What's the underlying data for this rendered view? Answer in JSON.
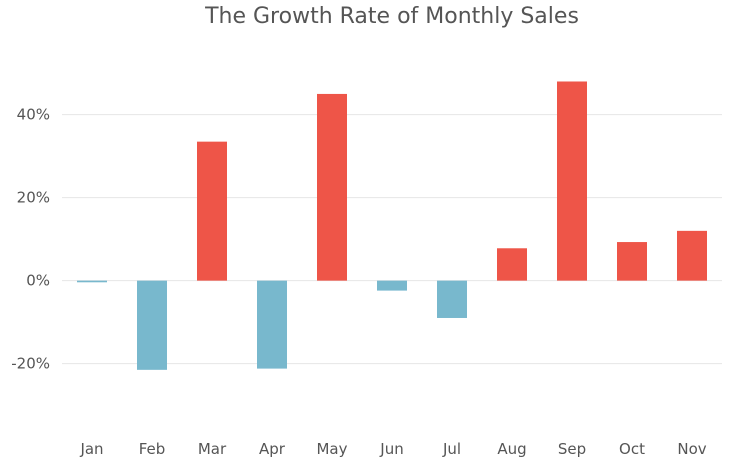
{
  "chart_data": {
    "type": "bar",
    "title": "The Growth Rate of Monthly Sales",
    "xlabel": "",
    "ylabel": "",
    "categories": [
      "Jan",
      "Feb",
      "Mar",
      "Apr",
      "May",
      "Jun",
      "Jul",
      "Aug",
      "Sep",
      "Oct",
      "Nov"
    ],
    "values": [
      -0.4,
      -21.5,
      33.5,
      -21.2,
      45.0,
      -2.4,
      -9.0,
      7.8,
      48.0,
      9.3,
      12.0
    ],
    "ylim": [
      -36,
      58
    ],
    "yticks": [
      -20,
      0,
      20,
      40
    ],
    "ytick_labels": [
      "-20%",
      "0%",
      "20%",
      "40%"
    ],
    "grid": true,
    "colors": {
      "positive": "#ee5548",
      "negative": "#78b8cd"
    }
  }
}
